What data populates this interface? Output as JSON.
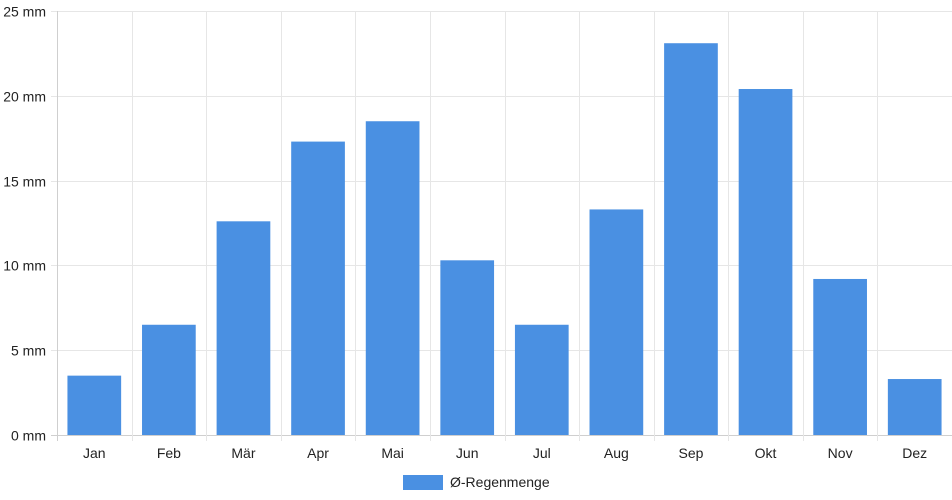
{
  "chart_data": {
    "type": "bar",
    "categories": [
      "Jan",
      "Feb",
      "Mär",
      "Apr",
      "Mai",
      "Jun",
      "Jul",
      "Aug",
      "Sep",
      "Okt",
      "Nov",
      "Dez"
    ],
    "series": [
      {
        "name": "Ø-Regenmenge",
        "values": [
          3.5,
          6.5,
          12.6,
          17.3,
          18.5,
          10.3,
          6.5,
          13.3,
          23.1,
          20.4,
          9.2,
          3.3
        ]
      }
    ],
    "y_ticks": [
      "0 mm",
      "5 mm",
      "10 mm",
      "15 mm",
      "20 mm",
      "25 mm"
    ],
    "ylim": [
      0,
      25
    ],
    "y_unit": "mm",
    "grid": true,
    "legend_position": "bottom-center",
    "colors": {
      "bar": "#4a90e2",
      "grid": "#e6e6e6",
      "text": "#222222"
    }
  }
}
